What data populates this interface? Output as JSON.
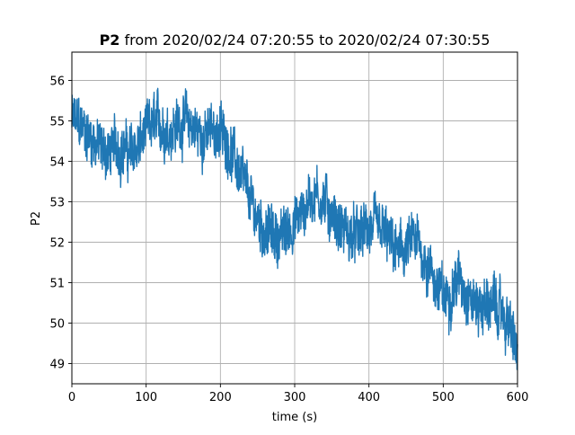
{
  "chart_data": {
    "type": "line",
    "title_bold": "P2",
    "title_rest": " from 2020/02/24 07:20:55 to 2020/02/24 07:30:55",
    "xlabel": "time (s)",
    "ylabel": "P2",
    "xlim": [
      0,
      600
    ],
    "ylim": [
      48.5,
      56.7
    ],
    "x_ticks": [
      0,
      100,
      200,
      300,
      400,
      500,
      600
    ],
    "y_ticks": [
      49,
      50,
      51,
      52,
      53,
      54,
      55,
      56
    ],
    "grid": true,
    "line_color": "#1f77b4",
    "series": [
      {
        "x": [
          0,
          10,
          20,
          30,
          40,
          50,
          60,
          70,
          80,
          90,
          100,
          110,
          120,
          130,
          140,
          150,
          160,
          170,
          180,
          190,
          200,
          210,
          220,
          230,
          240,
          250,
          260,
          270,
          280,
          290,
          300,
          310,
          320,
          330,
          340,
          350,
          360,
          370,
          380,
          390,
          400,
          410,
          420,
          430,
          440,
          450,
          460,
          470,
          480,
          490,
          500,
          510,
          520,
          530,
          540,
          550,
          560,
          570,
          580,
          590,
          600
        ],
        "y": [
          55.0,
          54.9,
          54.7,
          54.5,
          54.3,
          54.2,
          54.4,
          54.3,
          54.2,
          54.4,
          54.7,
          54.9,
          54.9,
          54.8,
          54.9,
          55.0,
          54.9,
          54.7,
          54.6,
          54.8,
          54.7,
          54.5,
          54.0,
          53.5,
          53.0,
          52.6,
          52.3,
          52.2,
          52.1,
          52.3,
          52.5,
          52.7,
          53.1,
          53.2,
          53.0,
          52.7,
          52.4,
          52.2,
          52.1,
          52.2,
          52.3,
          52.3,
          52.2,
          51.9,
          51.7,
          51.8,
          52.0,
          51.8,
          51.4,
          51.0,
          50.6,
          50.8,
          51.1,
          50.9,
          50.5,
          50.4,
          50.5,
          50.4,
          50.2,
          49.9,
          49.2
        ]
      }
    ]
  }
}
